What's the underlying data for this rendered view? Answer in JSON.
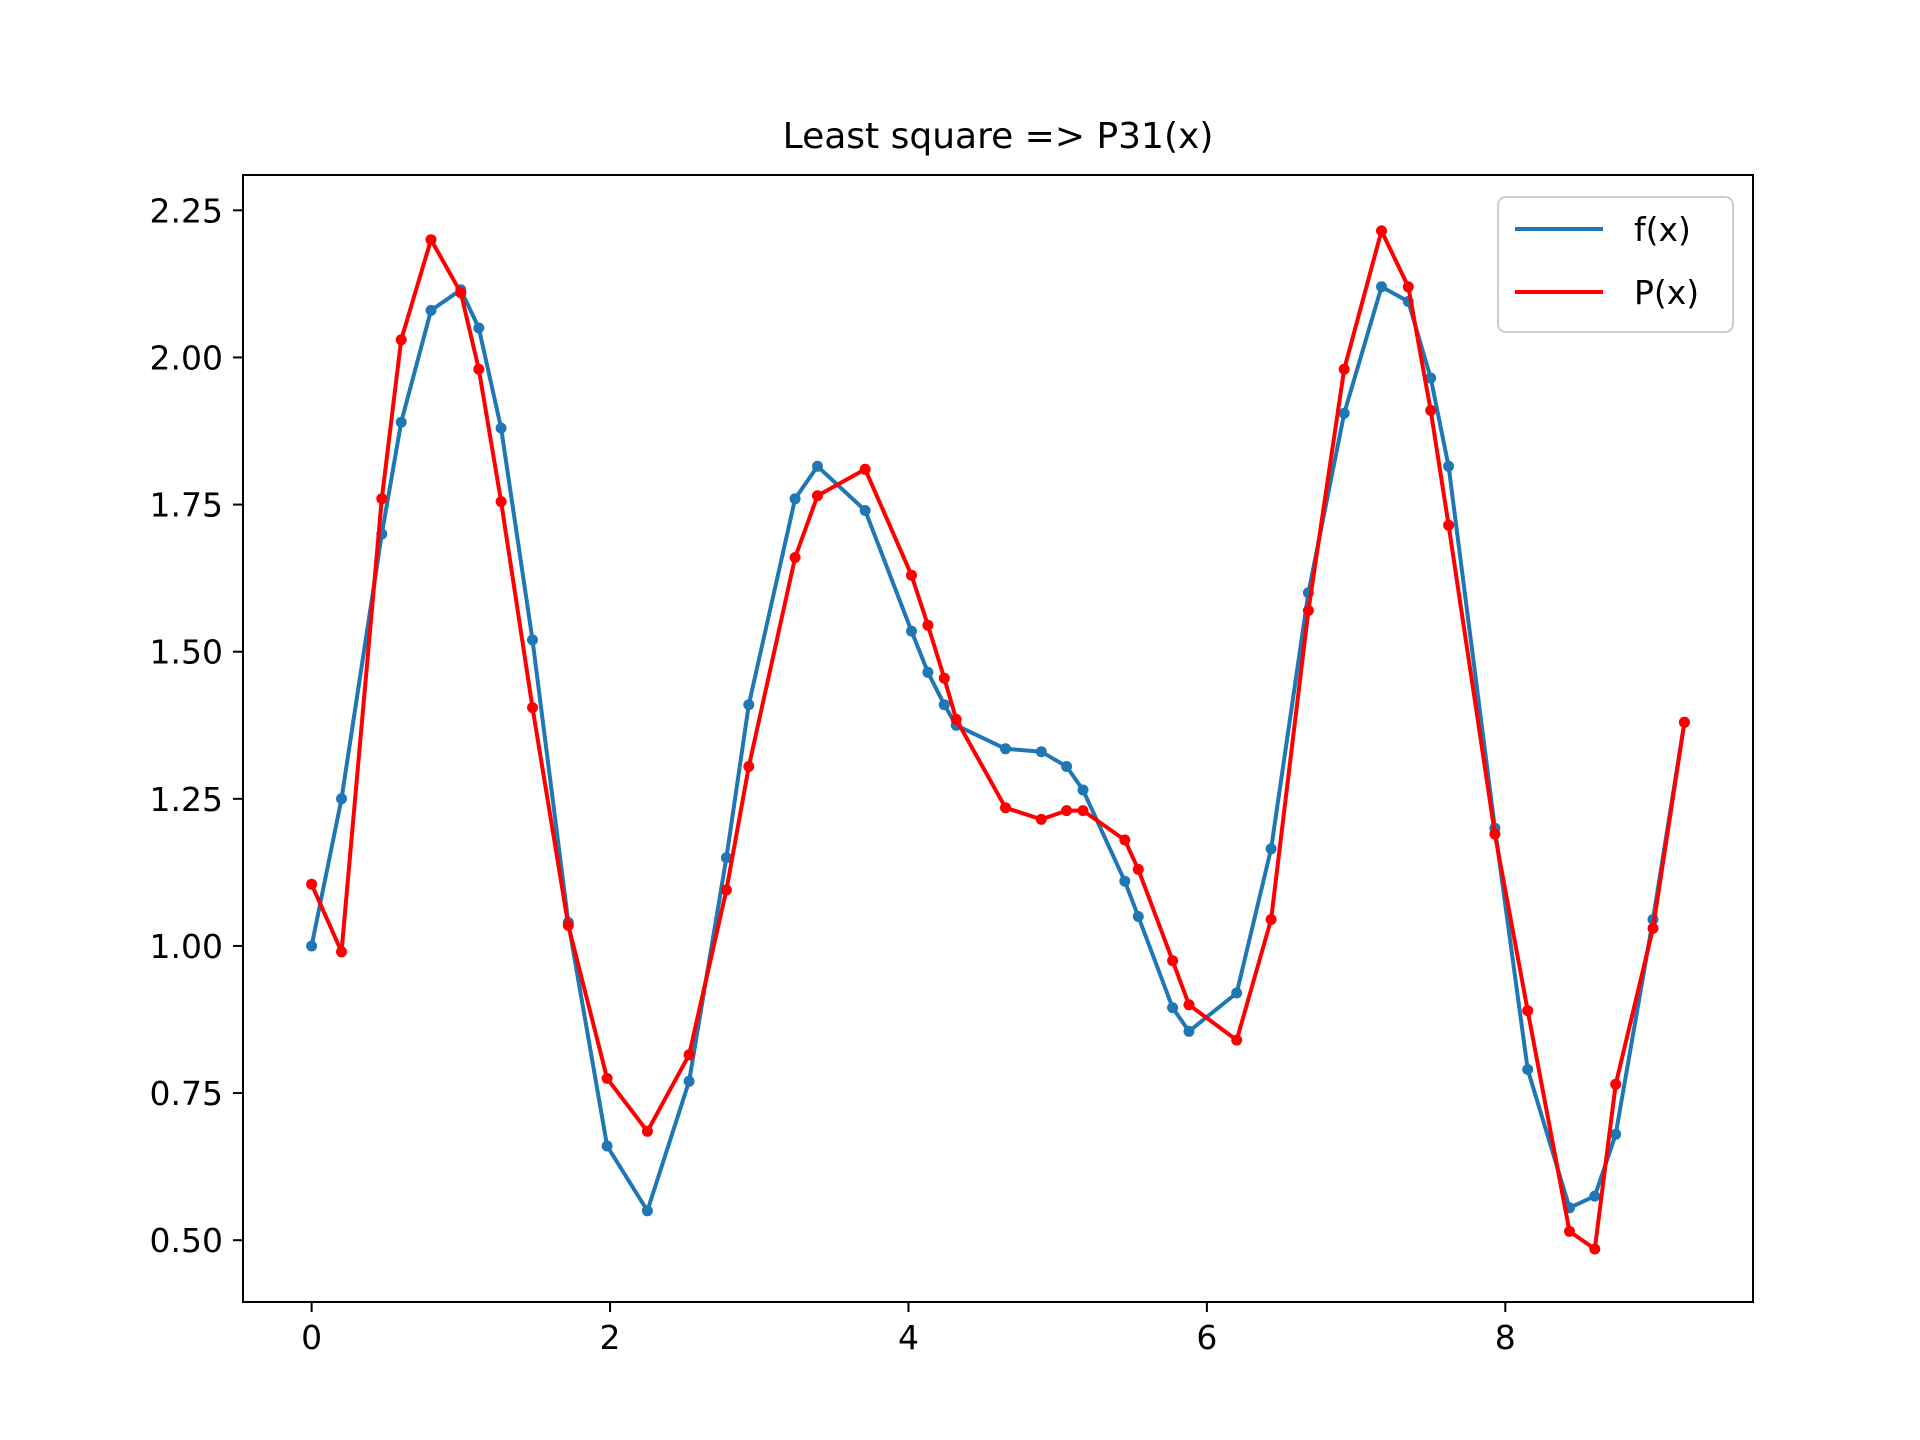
{
  "chart_data": {
    "type": "line",
    "title": "Least square => P31(x)",
    "xlabel": "",
    "ylabel": "",
    "xlim": [
      -0.46,
      9.66
    ],
    "ylim": [
      0.395,
      2.31
    ],
    "xticks": [
      0,
      2,
      4,
      6,
      8
    ],
    "yticks": [
      0.5,
      0.75,
      1.0,
      1.25,
      1.5,
      1.75,
      2.0,
      2.25
    ],
    "ytick_labels": [
      "0.50",
      "0.75",
      "1.00",
      "1.25",
      "1.50",
      "1.75",
      "2.00",
      "2.25"
    ],
    "grid": false,
    "legend": "top-right",
    "series": [
      {
        "name": "f(x)",
        "color": "#1f77b4",
        "x": [
          0.0,
          0.2,
          0.47,
          0.6,
          0.8,
          1.0,
          1.12,
          1.27,
          1.48,
          1.72,
          1.98,
          2.25,
          2.53,
          2.78,
          2.93,
          3.24,
          3.39,
          3.71,
          4.02,
          4.13,
          4.24,
          4.32,
          4.65,
          4.89,
          5.06,
          5.17,
          5.45,
          5.54,
          5.77,
          5.88,
          6.2,
          6.43,
          6.68,
          6.92,
          7.17,
          7.35,
          7.5,
          7.62,
          7.93,
          8.15,
          8.43,
          8.6,
          8.74,
          8.99,
          9.2
        ],
        "y": [
          1.0,
          1.25,
          1.7,
          1.89,
          2.08,
          2.115,
          2.05,
          1.88,
          1.52,
          1.04,
          0.66,
          0.55,
          0.77,
          1.15,
          1.41,
          1.76,
          1.815,
          1.74,
          1.535,
          1.465,
          1.41,
          1.375,
          1.335,
          1.33,
          1.305,
          1.265,
          1.11,
          1.05,
          0.895,
          0.855,
          0.92,
          1.165,
          1.6,
          1.905,
          2.12,
          2.095,
          1.965,
          1.815,
          1.2,
          0.79,
          0.555,
          0.575,
          0.68,
          1.045,
          1.38
        ]
      },
      {
        "name": "P(x)",
        "color": "#ff0000",
        "x": [
          0.0,
          0.2,
          0.47,
          0.6,
          0.8,
          1.0,
          1.12,
          1.27,
          1.48,
          1.72,
          1.98,
          2.25,
          2.53,
          2.78,
          2.93,
          3.24,
          3.39,
          3.71,
          4.02,
          4.13,
          4.24,
          4.32,
          4.65,
          4.89,
          5.06,
          5.17,
          5.45,
          5.54,
          5.77,
          5.88,
          6.2,
          6.43,
          6.68,
          6.92,
          7.17,
          7.35,
          7.5,
          7.62,
          7.93,
          8.15,
          8.43,
          8.6,
          8.74,
          8.99,
          9.2
        ],
        "y": [
          1.105,
          0.99,
          1.76,
          2.03,
          2.2,
          2.11,
          1.98,
          1.755,
          1.405,
          1.035,
          0.775,
          0.685,
          0.815,
          1.095,
          1.305,
          1.66,
          1.765,
          1.81,
          1.63,
          1.545,
          1.455,
          1.385,
          1.235,
          1.215,
          1.23,
          1.23,
          1.18,
          1.13,
          0.975,
          0.9,
          0.84,
          1.045,
          1.57,
          1.98,
          2.215,
          2.12,
          1.91,
          1.715,
          1.19,
          0.89,
          0.515,
          0.485,
          0.765,
          1.03,
          1.38
        ]
      }
    ]
  }
}
